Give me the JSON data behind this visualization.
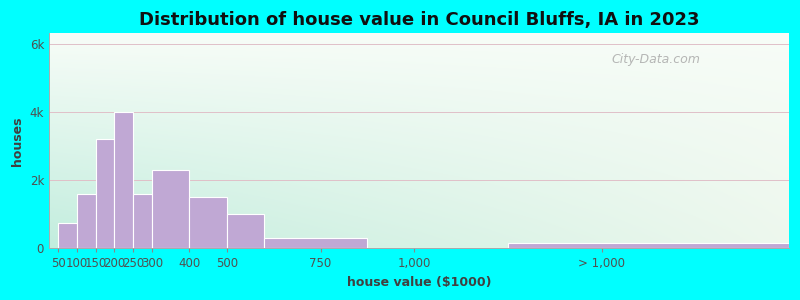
{
  "title": "Distribution of house value in Council Bluffs, IA in 2023",
  "xlabel": "house value ($1000)",
  "ylabel": "houses",
  "background_outer": "#00FFFF",
  "background_inner_topleft": "#ddf0ee",
  "background_inner_topright": "#f8f8f5",
  "background_inner_bottomleft": "#c8ece0",
  "background_inner_bottomright": "#eef5ee",
  "bar_color": "#c0a8d4",
  "bar_edge_color": "#ffffff",
  "title_fontsize": 13,
  "label_fontsize": 9,
  "tick_fontsize": 8.5,
  "bar_lefts": [
    50,
    100,
    150,
    200,
    250,
    300,
    400,
    500,
    600,
    875,
    1250
  ],
  "bar_heights": [
    750,
    1600,
    3200,
    4000,
    1600,
    2300,
    1500,
    1000,
    300,
    0,
    150
  ],
  "bar_rights": [
    100,
    150,
    200,
    250,
    300,
    400,
    500,
    600,
    875,
    1250,
    2000
  ],
  "xtick_positions": [
    50,
    100,
    150,
    200,
    250,
    300,
    400,
    500,
    750,
    1000,
    1500
  ],
  "xtick_labels": [
    "50",
    "100",
    "150",
    "200",
    "250",
    "300",
    "400",
    "500",
    "750",
    "1,000",
    "> 1,000"
  ],
  "ytick_positions": [
    0,
    2000,
    4000,
    6000
  ],
  "ytick_labels": [
    "0",
    "2k",
    "4k",
    "6k"
  ],
  "ylim": [
    0,
    6300
  ],
  "xlim": [
    25,
    2000
  ],
  "watermark": "City-Data.com"
}
